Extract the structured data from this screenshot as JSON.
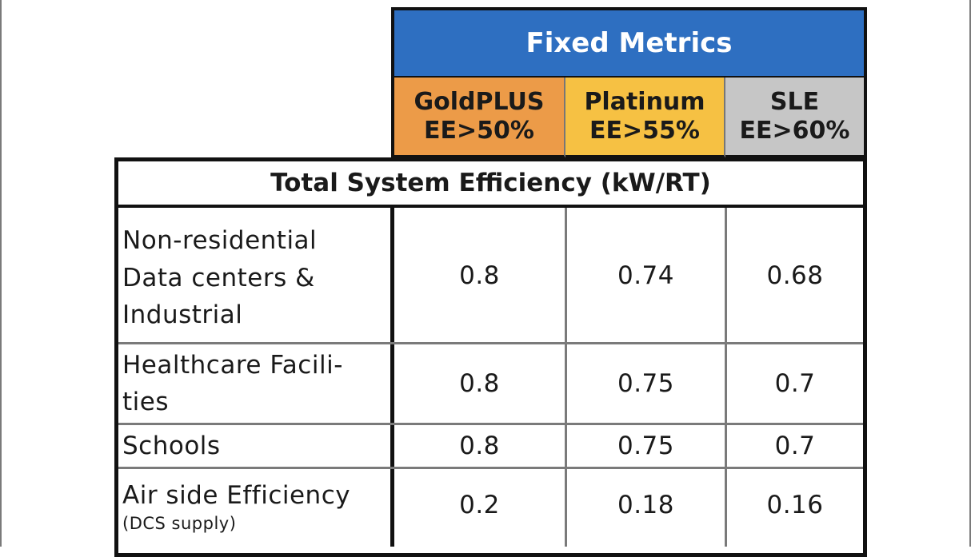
{
  "header": {
    "title": "Fixed Metrics",
    "tiers": [
      {
        "name": "GoldPLUS",
        "threshold": "EE>50%"
      },
      {
        "name": "Platinum",
        "threshold": "EE>55%"
      },
      {
        "name": "SLE",
        "threshold": "EE>60%"
      }
    ]
  },
  "section_title": "Total System Efficiency (kW/RT)",
  "rows": [
    {
      "label_lines": [
        "Non-residential",
        "Data centers &",
        "Industrial"
      ],
      "values": [
        "0.8",
        "0.74",
        "0.68"
      ]
    },
    {
      "label_lines": [
        "Healthcare Facili-",
        "ties"
      ],
      "values": [
        "0.8",
        "0.75",
        "0.7"
      ]
    },
    {
      "label_lines": [
        "Schools"
      ],
      "values": [
        "0.8",
        "0.75",
        "0.7"
      ]
    },
    {
      "label_lines": [
        "Air side Efficiency"
      ],
      "note": "(DCS supply)",
      "values": [
        "0.2",
        "0.18",
        "0.16"
      ]
    }
  ],
  "colors": {
    "header_blue": "#2e6fc1",
    "goldplus_orange": "#ec9b48",
    "platinum_yellow": "#f6c143",
    "sle_grey": "#c6c6c6"
  }
}
